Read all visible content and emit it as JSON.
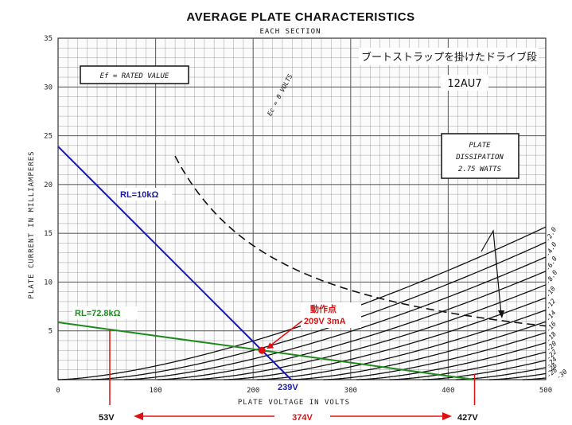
{
  "chart_data": {
    "type": "line",
    "title": "AVERAGE PLATE CHARACTERISTICS",
    "subtitle": "EACH SECTION",
    "xlabel": "PLATE VOLTAGE IN VOLTS",
    "ylabel": "PLATE CURRENT IN MILLIAMPERES",
    "xlim": [
      0,
      500
    ],
    "ylim": [
      0,
      35
    ],
    "x_ticks": [
      "0",
      "100",
      "200",
      "300",
      "400",
      "500"
    ],
    "y_ticks": [
      "5",
      "10",
      "15",
      "20",
      "25",
      "30",
      "35"
    ],
    "grid": true,
    "tube": "12AU7",
    "note_jp": "ブートストラップを掛けたドライブ段",
    "ef_note": "Ef = RATED VALUE",
    "dissipation_label": [
      "PLATE",
      "DISSIPATION",
      "2.75 WATTS"
    ],
    "grid_curves": [
      {
        "label": "Ec = 0 VOLTS",
        "vg": 0
      },
      {
        "label": "-2.0",
        "vg": -2
      },
      {
        "label": "-4.0",
        "vg": -4
      },
      {
        "label": "-6.0",
        "vg": -6
      },
      {
        "label": "-8.0",
        "vg": -8
      },
      {
        "label": "-10",
        "vg": -10
      },
      {
        "label": "-12",
        "vg": -12
      },
      {
        "label": "-14",
        "vg": -14
      },
      {
        "label": "-16",
        "vg": -16
      },
      {
        "label": "-18",
        "vg": -18
      },
      {
        "label": "-20",
        "vg": -20
      },
      {
        "label": "-22",
        "vg": -22
      },
      {
        "label": "-24",
        "vg": -24
      },
      {
        "label": "-26",
        "vg": -26
      },
      {
        "label": "-28",
        "vg": -28
      },
      {
        "label": "-30",
        "vg": -30
      }
    ],
    "dissipation_watts": 2.75,
    "load_lines": [
      {
        "label": "RL=10kΩ",
        "color": "#1a1aa8",
        "x": [
          0,
          239
        ],
        "y": [
          23.9,
          0
        ]
      },
      {
        "label": "RL=72.8kΩ",
        "color": "#1e8a1e",
        "x": [
          0,
          427
        ],
        "y": [
          5.87,
          0
        ]
      }
    ],
    "operating_point": {
      "label": "動作点",
      "value": "209V 3mA",
      "x": 209,
      "y": 3.0,
      "color": "#e01010"
    },
    "markers": [
      {
        "label": "53V",
        "x": 53
      },
      {
        "label": "374V",
        "x": 374
      },
      {
        "label": "427V",
        "x": 427
      },
      {
        "label": "239V",
        "x": 239
      }
    ]
  },
  "colors": {
    "grid": "#555555",
    "curve": "#111111",
    "red": "#e01010",
    "blue": "#1a1aa8",
    "green": "#1e8a1e"
  }
}
